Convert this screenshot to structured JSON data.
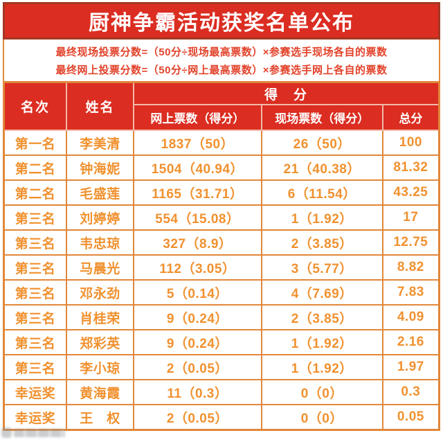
{
  "title": "厨神争霸活动获奖名单公布",
  "formulas": {
    "line1": "最终现场投票分数=（50分÷现场最高票数）×参赛选手现场各自的票数",
    "line2": "最终网上投票分数=（50分÷网上最高票数）×参赛选手网上各自的票数"
  },
  "table": {
    "header": {
      "rank": "名次",
      "name": "姓名",
      "score_group": "得　分",
      "online": "网上票数（得分）",
      "onsite": "现场票数（得分）",
      "total": "总分"
    },
    "rows": [
      {
        "rank": "第一名",
        "name": "李美清",
        "online": "1837（50）",
        "onsite": "26（50）",
        "total": "100"
      },
      {
        "rank": "第二名",
        "name": "钟海妮",
        "online": "1504（40.94）",
        "onsite": "21（40.38）",
        "total": "81.32"
      },
      {
        "rank": "第二名",
        "name": "毛盛莲",
        "online": "1165（31.71）",
        "onsite": "6（11.54）",
        "total": "43.25"
      },
      {
        "rank": "第三名",
        "name": "刘婷婷",
        "online": "554（15.08）",
        "onsite": "1（1.92）",
        "total": "17"
      },
      {
        "rank": "第三名",
        "name": "韦忠琼",
        "online": "327（8.9）",
        "onsite": "2（3.85）",
        "total": "12.75"
      },
      {
        "rank": "第三名",
        "name": "马晨光",
        "online": "112（3.05）",
        "onsite": "3（5.77）",
        "total": "8.82"
      },
      {
        "rank": "第三名",
        "name": "邓永劲",
        "online": "5（0.14）",
        "onsite": "4（7.69）",
        "total": "7.83"
      },
      {
        "rank": "第三名",
        "name": "肖桂荣",
        "online": "9（0.24）",
        "onsite": "2（3.85）",
        "total": "4.09"
      },
      {
        "rank": "第三名",
        "name": "郑彩英",
        "online": "9（0.24）",
        "onsite": "1（1.92）",
        "total": "2.16"
      },
      {
        "rank": "第三名",
        "name": "李小琼",
        "online": "2（0.05）",
        "onsite": "1（1.92）",
        "total": "1.97"
      },
      {
        "rank": "幸运奖",
        "name": "黄海霞",
        "online": "11（0.3）",
        "onsite": "0（0）",
        "total": "0.3"
      },
      {
        "rank": "幸运奖",
        "name": "王　权",
        "online": "2（0.05）",
        "onsite": "0（0）",
        "total": "0.05"
      }
    ]
  },
  "colors": {
    "banner_red": "#db2d21",
    "banner_border": "#a33823",
    "grid_orange": "#e1873b",
    "text_orange": "#f0912f",
    "formula_red": "#e2422a",
    "header_divider": "#f2b9aa"
  }
}
